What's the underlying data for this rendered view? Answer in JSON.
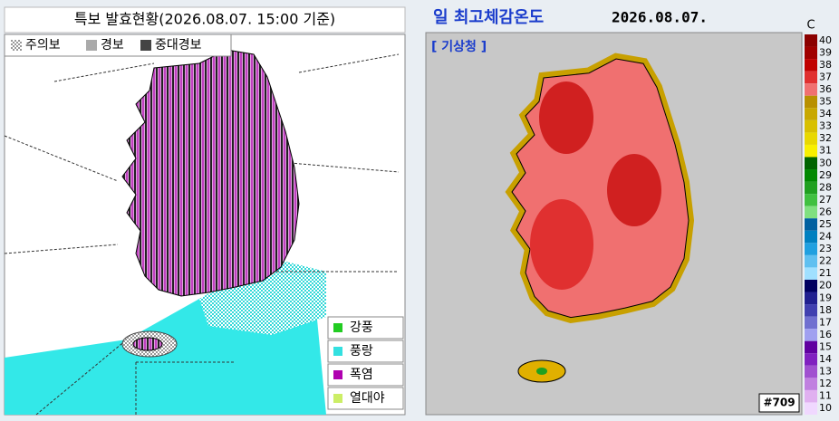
{
  "left": {
    "title": "특보 발효현황(2026.08.07. 15:00 기준)",
    "legend": [
      "주의보",
      "경보",
      "중대경보"
    ],
    "warnings": [
      {
        "label": "강풍",
        "color": "#22cc22"
      },
      {
        "label": "풍랑",
        "color": "#33e0e0"
      },
      {
        "label": "폭염",
        "color": "#b000b0"
      },
      {
        "label": "열대야",
        "color": "#ccee66"
      }
    ]
  },
  "right": {
    "title": "일 최고체감온도",
    "date": "2026.08.07.",
    "source": "[ 기상청 ]",
    "unit": "C",
    "station": "#709",
    "scale": [
      {
        "value": 40,
        "color": "#8b0000"
      },
      {
        "value": 39,
        "color": "#a00000"
      },
      {
        "value": 38,
        "color": "#c00000"
      },
      {
        "value": 37,
        "color": "#e03030"
      },
      {
        "value": 36,
        "color": "#f07070"
      },
      {
        "value": 35,
        "color": "#b89000"
      },
      {
        "value": 34,
        "color": "#c8a800"
      },
      {
        "value": 33,
        "color": "#d8c000"
      },
      {
        "value": 32,
        "color": "#e8d800"
      },
      {
        "value": 31,
        "color": "#f8f000"
      },
      {
        "value": 30,
        "color": "#006400"
      },
      {
        "value": 29,
        "color": "#008800"
      },
      {
        "value": 28,
        "color": "#20a020"
      },
      {
        "value": 27,
        "color": "#40c040"
      },
      {
        "value": 26,
        "color": "#80e080"
      },
      {
        "value": 25,
        "color": "#0060a0"
      },
      {
        "value": 24,
        "color": "#0080c0"
      },
      {
        "value": 23,
        "color": "#20a0e0"
      },
      {
        "value": 22,
        "color": "#60c0f0"
      },
      {
        "value": 21,
        "color": "#a0e0ff"
      },
      {
        "value": 20,
        "color": "#000060"
      },
      {
        "value": 19,
        "color": "#202090"
      },
      {
        "value": 18,
        "color": "#4040b0"
      },
      {
        "value": 17,
        "color": "#7070d0"
      },
      {
        "value": 16,
        "color": "#a0a0f0"
      },
      {
        "value": 15,
        "color": "#6000a0"
      },
      {
        "value": 14,
        "color": "#8020c0"
      },
      {
        "value": 13,
        "color": "#a050d0"
      },
      {
        "value": 12,
        "color": "#c080e0"
      },
      {
        "value": 11,
        "color": "#e0b0f0"
      },
      {
        "value": 10,
        "color": "#f0d8ff"
      }
    ]
  }
}
